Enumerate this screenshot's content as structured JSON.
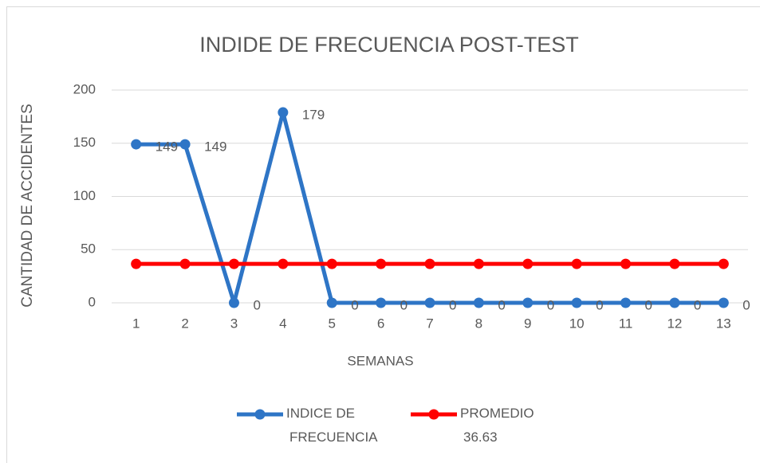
{
  "chart_data": {
    "type": "line",
    "title": "INDIDE DE FRECUENCIA POST-TEST",
    "x_label": "SEMANAS",
    "y_label": "CANTIDAD DE ACCIDENTES",
    "categories": [
      "1",
      "2",
      "3",
      "4",
      "5",
      "6",
      "7",
      "8",
      "9",
      "10",
      "11",
      "12",
      "13"
    ],
    "series": [
      {
        "name": "INDICE DE FRECUENCIA",
        "color": "#2e75c6",
        "values": [
          149,
          149,
          0,
          179,
          0,
          0,
          0,
          0,
          0,
          0,
          0,
          0,
          0
        ],
        "data_labels": true
      },
      {
        "name": "PROMEDIO 36.63",
        "color": "#ff0000",
        "values": [
          36.63,
          36.63,
          36.63,
          36.63,
          36.63,
          36.63,
          36.63,
          36.63,
          36.63,
          36.63,
          36.63,
          36.63,
          36.63
        ],
        "data_labels": false
      }
    ],
    "ylim": [
      0,
      200
    ],
    "yticks": [
      0,
      50,
      100,
      150,
      200
    ],
    "grid": true,
    "legend": "bottom"
  }
}
